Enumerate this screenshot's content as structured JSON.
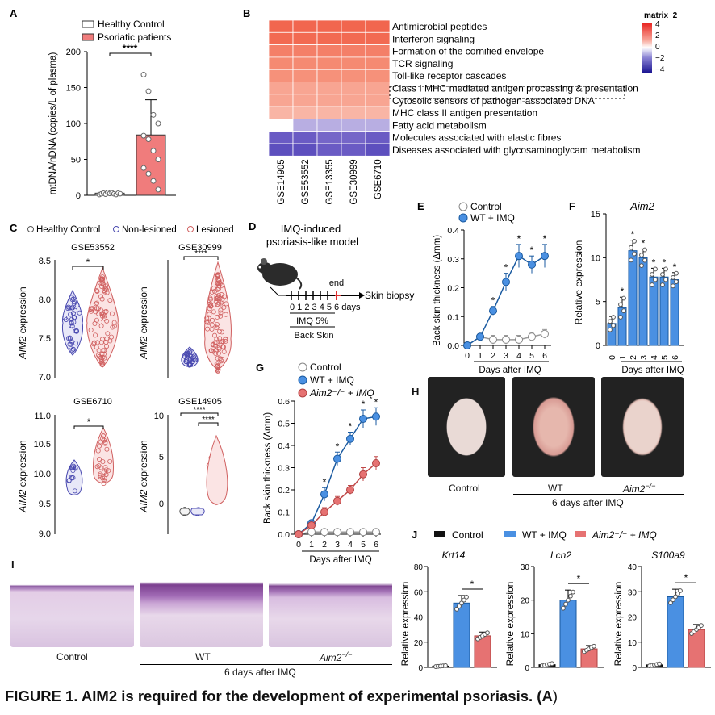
{
  "panels": {
    "A": {
      "label": "A",
      "ylabel": "mtDNA/nDNA (copies/L of plasma)",
      "legend": [
        "Healthy Control",
        "Psoriatic patients"
      ],
      "sig": "****",
      "yticks": [
        "0",
        "50",
        "100",
        "150",
        "200"
      ],
      "colors": {
        "control": "#ffffff",
        "psoriatic": "#f07c7c"
      }
    },
    "B": {
      "label": "B",
      "legend_title": "matrix_2",
      "legend_ticks": [
        "4",
        "2",
        "0",
        "−2",
        "−4"
      ],
      "datasets": [
        "GSE14905",
        "GSE53552",
        "GSE13355",
        "GSE30999",
        "GSE6710"
      ],
      "pathways": [
        "Antimicrobial peptides",
        "Interferon signaling",
        "Formation of the cornified envelope",
        "TCR signaling",
        "Toll-like receptor cascades",
        "Class I MHC mediated antigen processing & presentation",
        "Cytosolic sensors of pathogen-associated DNA",
        "MHC class II antigen presentation",
        "Fatty acid metabolism",
        "Molecules associated with elastic fibres",
        "Diseases associated with glycosaminoglycam metabolism"
      ]
    },
    "C": {
      "label": "C",
      "legend": [
        "Healthy Control",
        "Non-lesioned",
        "Lesioned"
      ],
      "ylabel_gene": "AIM2",
      "ylabel_rest": " expression",
      "subplots": [
        {
          "title": "GSE53552",
          "yticks": [
            "7.0",
            "7.5",
            "8.0",
            "8.5"
          ],
          "sig": [
            "*"
          ]
        },
        {
          "title": "GSE30999",
          "yticks": [
            "",
            "",
            "",
            ""
          ],
          "sig": [
            "****"
          ]
        },
        {
          "title": "GSE6710",
          "yticks": [
            "9.0",
            "9.5",
            "10.0",
            "10.5",
            "11.0"
          ],
          "sig": [
            "*"
          ]
        },
        {
          "title": "GSE14905",
          "yticks": [
            "0",
            "5",
            "10"
          ],
          "sig": [
            "****",
            "****"
          ]
        }
      ]
    },
    "D": {
      "label": "D",
      "title_lines": [
        "IMQ-induced",
        "psoriasis-like model"
      ],
      "end_label": "end",
      "days_text": "0 1 2 3 4 5 6 days",
      "biopsy": "Skin biopsy",
      "imq": "IMQ 5%",
      "site": "Back Skin"
    },
    "E": {
      "label": "E",
      "ylabel": "Back skin thickness (Δmm)",
      "xlabel": "Days after IMQ",
      "legend": [
        "Control",
        "WT + IMQ"
      ],
      "yticks": [
        "0.0",
        "0.1",
        "0.2",
        "0.3",
        "0.4"
      ],
      "xticks": [
        "0",
        "1",
        "2",
        "3",
        "4",
        "5",
        "6"
      ],
      "sig": "*"
    },
    "F": {
      "label": "F",
      "title": "Aim2",
      "ylabel": "Relative expression",
      "xlabel": "Days after IMQ",
      "yticks": [
        "0",
        "5",
        "10",
        "15"
      ],
      "xticks": [
        "0",
        "1",
        "2",
        "3",
        "4",
        "5",
        "6"
      ],
      "sig": "*"
    },
    "G": {
      "label": "G",
      "ylabel": "Back skin thickness (Δmm)",
      "xlabel": "Days after IMQ",
      "legend": [
        "Control",
        "WT + IMQ",
        "Aim2⁻/⁻ + IMQ"
      ],
      "yticks": [
        "0.0",
        "0.1",
        "0.2",
        "0.3",
        "0.4",
        "0.5",
        "0.6"
      ],
      "xticks": [
        "0",
        "1",
        "2",
        "3",
        "4",
        "5",
        "6"
      ],
      "sig": "*"
    },
    "H": {
      "label": "H",
      "labels": [
        "Control",
        "WT",
        "Aim2"
      ],
      "sup": "−/−",
      "footer": "6 days after IMQ"
    },
    "I": {
      "label": "I",
      "labels": [
        "Control",
        "WT",
        "Aim2"
      ],
      "sup": "−/−",
      "footer": "6 days after IMQ"
    },
    "J": {
      "label": "J",
      "legend": [
        "Control",
        "WT + IMQ",
        "Aim2⁻/⁻ + IMQ"
      ],
      "ylabel": "Relative expression",
      "subplots": [
        {
          "title": "Krt14",
          "yticks": [
            "0",
            "20",
            "40",
            "60",
            "80"
          ]
        },
        {
          "title": "Lcn2",
          "yticks": [
            "0",
            "10",
            "20",
            "30"
          ]
        },
        {
          "title": "S100a9",
          "yticks": [
            "0",
            "10",
            "20",
            "30",
            "40"
          ]
        }
      ],
      "sig": "*"
    }
  },
  "caption": {
    "text": "FIGURE 1. AIM2 is required for the development of experimental psoriasis. (",
    "bold_tail": "A",
    "close": ")"
  },
  "chart_data": [
    {
      "panel": "A",
      "type": "bar",
      "categories": [
        "Healthy Control",
        "Psoriatic patients"
      ],
      "values": [
        3,
        84
      ],
      "errors": [
        1,
        49
      ],
      "ylim": [
        0,
        200
      ],
      "ylabel": "mtDNA/nDNA (copies/L of plasma)"
    },
    {
      "panel": "E",
      "type": "line",
      "x": [
        0,
        1,
        2,
        3,
        4,
        5,
        6
      ],
      "xlabel": "Days after IMQ",
      "ylabel": "Back skin thickness (Δmm)",
      "ylim": [
        0,
        0.4
      ],
      "series": [
        {
          "name": "Control",
          "values": [
            0.0,
            0.03,
            0.02,
            0.02,
            0.02,
            0.03,
            0.04
          ],
          "errors": [
            0,
            0.01,
            0.015,
            0.015,
            0.015,
            0.015,
            0.015
          ]
        },
        {
          "name": "WT + IMQ",
          "values": [
            0.0,
            0.03,
            0.12,
            0.22,
            0.31,
            0.28,
            0.31
          ],
          "errors": [
            0,
            0.01,
            0.015,
            0.03,
            0.04,
            0.03,
            0.04
          ]
        }
      ]
    },
    {
      "panel": "F",
      "type": "bar",
      "title": "Aim2",
      "categories": [
        "0",
        "1",
        "2",
        "3",
        "4",
        "5",
        "6"
      ],
      "values": [
        2.5,
        4.3,
        10.8,
        10.0,
        7.8,
        7.8,
        7.5
      ],
      "errors": [
        0.8,
        1.2,
        1.2,
        1.0,
        1.0,
        1.0,
        0.8
      ],
      "ylim": [
        0,
        15
      ],
      "ylabel": "Relative expression",
      "xlabel": "Days after IMQ"
    },
    {
      "panel": "G",
      "type": "line",
      "x": [
        0,
        1,
        2,
        3,
        4,
        5,
        6
      ],
      "xlabel": "Days after IMQ",
      "ylabel": "Back skin thickness (Δmm)",
      "ylim": [
        0,
        0.6
      ],
      "series": [
        {
          "name": "Control",
          "values": [
            0,
            0.01,
            0.01,
            0.01,
            0.01,
            0.01,
            0.01
          ],
          "errors": [
            0,
            0.003,
            0.003,
            0.003,
            0.003,
            0.003,
            0.003
          ]
        },
        {
          "name": "WT + IMQ",
          "values": [
            0,
            0.05,
            0.18,
            0.34,
            0.43,
            0.52,
            0.53
          ],
          "errors": [
            0,
            0.01,
            0.03,
            0.03,
            0.03,
            0.04,
            0.04
          ]
        },
        {
          "name": "Aim2⁻/⁻ + IMQ",
          "values": [
            0,
            0.04,
            0.1,
            0.15,
            0.2,
            0.27,
            0.32
          ],
          "errors": [
            0,
            0.01,
            0.02,
            0.02,
            0.02,
            0.03,
            0.03
          ]
        }
      ]
    },
    {
      "panel": "J-Krt14",
      "type": "bar",
      "categories": [
        "Control",
        "WT + IMQ",
        "Aim2⁻/⁻ + IMQ"
      ],
      "values": [
        1,
        51,
        25
      ],
      "errors": [
        0.5,
        6,
        3
      ],
      "ylim": [
        0,
        80
      ]
    },
    {
      "panel": "J-Lcn2",
      "type": "bar",
      "categories": [
        "Control",
        "WT + IMQ",
        "Aim2⁻/⁻ + IMQ"
      ],
      "values": [
        0.8,
        20,
        5.5
      ],
      "errors": [
        0.4,
        3,
        1
      ],
      "ylim": [
        0,
        30
      ]
    },
    {
      "panel": "J-S100a9",
      "type": "bar",
      "categories": [
        "Control",
        "WT + IMQ",
        "Aim2⁻/⁻ + IMQ"
      ],
      "values": [
        1,
        28,
        15
      ],
      "errors": [
        0.5,
        3,
        2
      ],
      "ylim": [
        0,
        40
      ]
    }
  ]
}
